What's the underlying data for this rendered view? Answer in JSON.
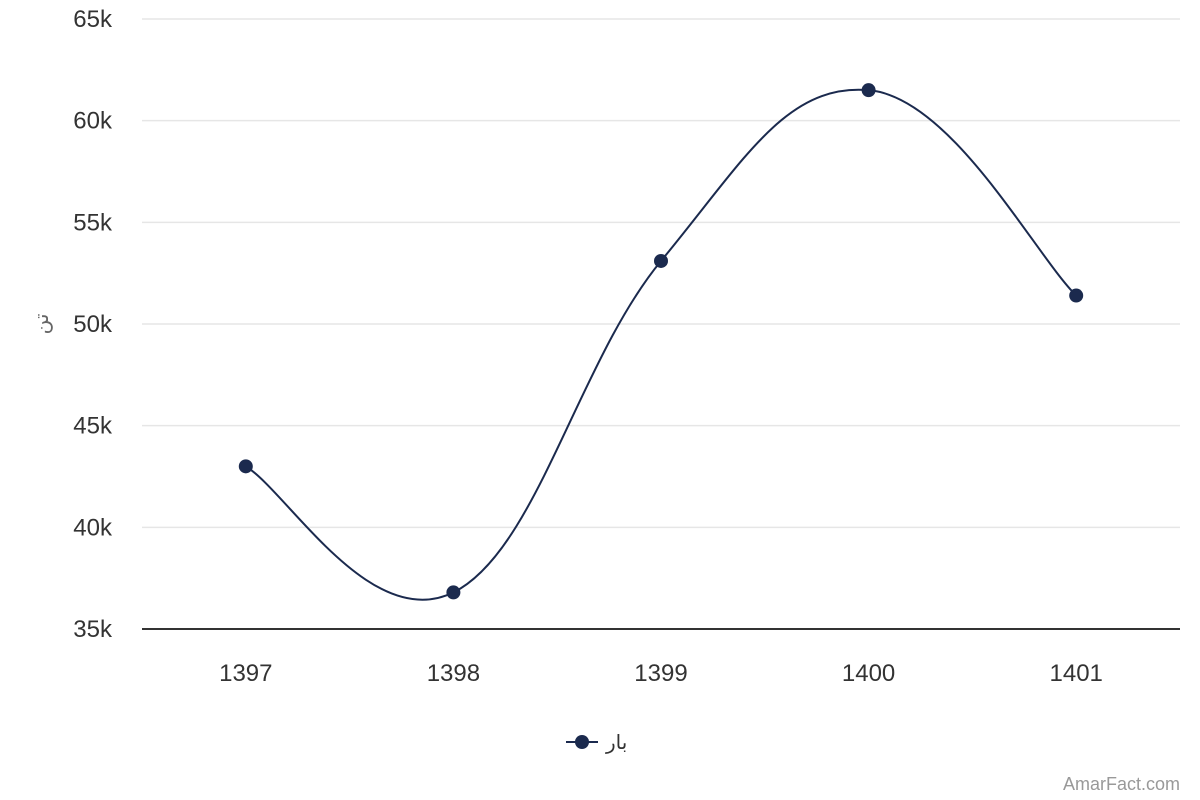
{
  "chart_data": {
    "type": "line",
    "categories": [
      "1397",
      "1398",
      "1399",
      "1400",
      "1401"
    ],
    "series": [
      {
        "name": "بار",
        "values": [
          43000,
          36800,
          53100,
          61500,
          51400
        ],
        "color": "#1b2a4e"
      }
    ],
    "ylabel": "تن",
    "ylim": [
      35000,
      65000
    ],
    "y_ticks": [
      35000,
      40000,
      45000,
      50000,
      55000,
      60000,
      65000
    ],
    "y_tick_labels": [
      "35k",
      "40k",
      "45k",
      "50k",
      "55k",
      "60k",
      "65k"
    ],
    "grid": true,
    "smooth": true,
    "legend": "bottom-center",
    "credit": "AmarFact.com",
    "colors": {
      "grid": "#e6e6e6",
      "axis": "#333333",
      "text": "#333333",
      "credit": "#999999"
    }
  }
}
